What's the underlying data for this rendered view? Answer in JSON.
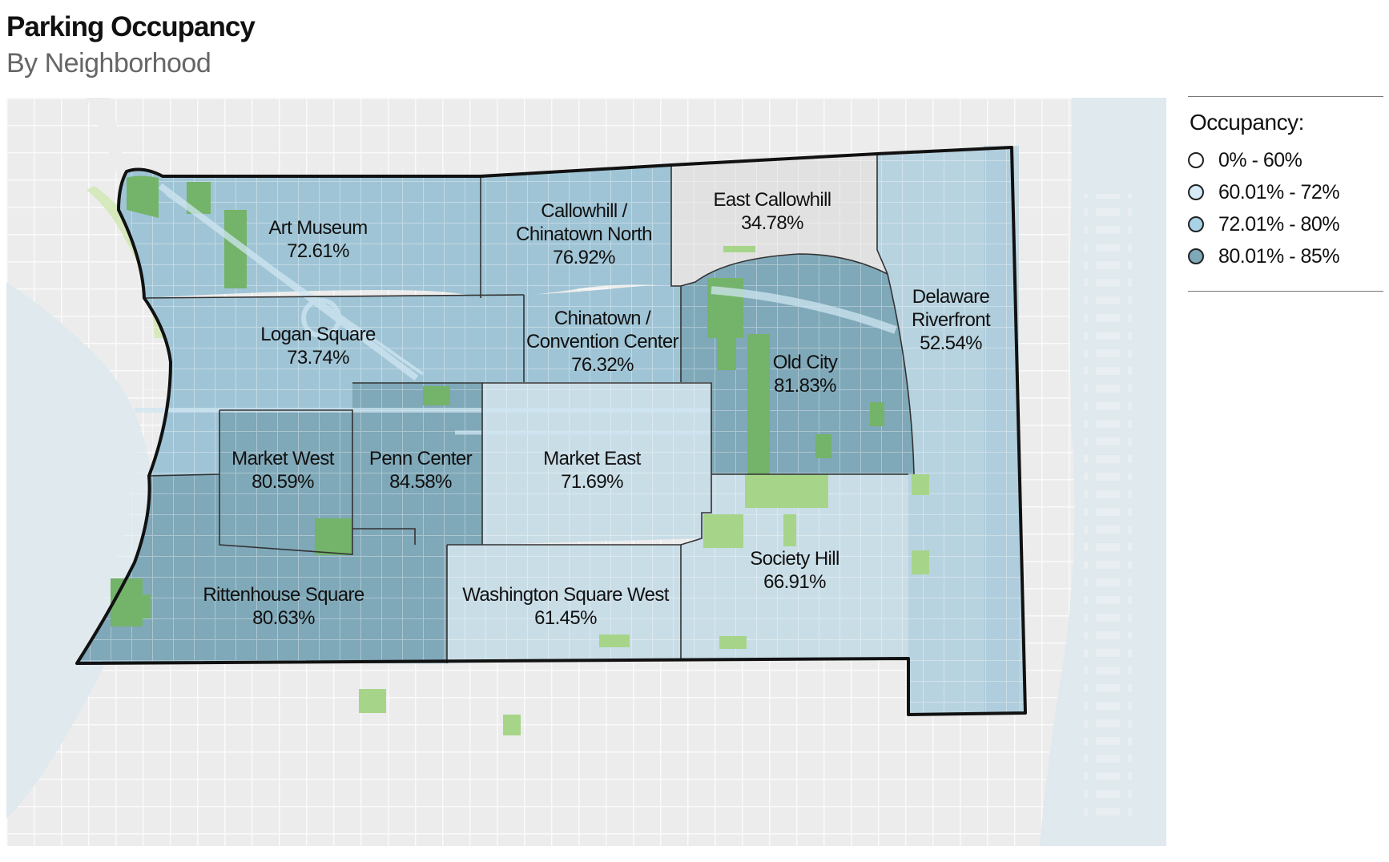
{
  "title": "Parking Occupancy",
  "subtitle": "By Neighborhood",
  "legend": {
    "title": "Occupancy:",
    "items": [
      {
        "label": "0% - 60%",
        "color": "#ffffff"
      },
      {
        "label": "60.01% - 72%",
        "color": "#d6ebf5"
      },
      {
        "label": "72.01% - 80%",
        "color": "#a9d2e6"
      },
      {
        "label": "80.01% - 85%",
        "color": "#7fa9b8"
      }
    ]
  },
  "neighborhoods": [
    {
      "name": "Art Museum",
      "occupancy": "72.61%"
    },
    {
      "name": "Callowhill / Chinatown North",
      "name_lines": [
        "Callowhill /",
        "Chinatown North"
      ],
      "occupancy": "76.92%"
    },
    {
      "name": "East Callowhill",
      "occupancy": "34.78%"
    },
    {
      "name": "Delaware Riverfront",
      "name_lines": [
        "Delaware",
        "Riverfront"
      ],
      "occupancy": "52.54%"
    },
    {
      "name": "Logan Square",
      "occupancy": "73.74%"
    },
    {
      "name": "Chinatown / Convention Center",
      "name_lines": [
        "Chinatown /",
        "Convention Center"
      ],
      "occupancy": "76.32%"
    },
    {
      "name": "Old City",
      "occupancy": "81.83%"
    },
    {
      "name": "Market West",
      "occupancy": "80.59%"
    },
    {
      "name": "Penn Center",
      "occupancy": "84.58%"
    },
    {
      "name": "Market East",
      "occupancy": "71.69%"
    },
    {
      "name": "Society Hill",
      "occupancy": "66.91%"
    },
    {
      "name": "Rittenhouse Square",
      "occupancy": "80.63%"
    },
    {
      "name": "Washington Square West",
      "occupancy": "61.45%"
    }
  ],
  "colors": {
    "base_land": "#ececec",
    "water": "#dfe9ee",
    "park": "#a6d58a",
    "tier_low": "#e1e1e1",
    "tier_mid_low": "#c9dde7",
    "tier_mid_high": "#9fc4d5",
    "tier_high": "#7fa8b8",
    "boundary": "#111111"
  }
}
